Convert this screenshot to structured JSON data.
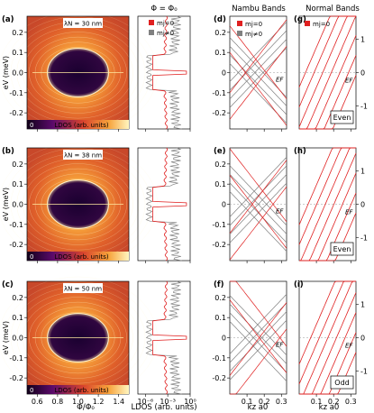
{
  "headers": {
    "col2": "Φ = Φ₀",
    "col3": "Nambu Bands",
    "col4": "Normal Bands"
  },
  "rows": [
    {
      "lambda": "λN = 30 nm",
      "parity": "Even",
      "labels": {
        "map": "(a)",
        "nambu": "(d)",
        "normal": "(g)"
      }
    },
    {
      "lambda": "λN = 38 nm",
      "parity": "Even",
      "labels": {
        "map": "(b)",
        "nambu": "(e)",
        "normal": "(h)"
      }
    },
    {
      "lambda": "λN = 50 nm",
      "parity": "Odd",
      "labels": {
        "map": "(c)",
        "nambu": "(f)",
        "normal": "(i)"
      }
    }
  ],
  "colorbar": {
    "min": "0",
    "label": "LDOS (arb. units)"
  },
  "legend": {
    "mj0": "mj=0",
    "mjn0": "mj≠0",
    "normal_mj0": "mj=0",
    "colors": {
      "mj0": "#e02020",
      "mjn0": "#808080"
    }
  },
  "axes": {
    "ylabel": "eV (meV)",
    "yticks_map": [
      "0.2",
      "0.1",
      "0.0",
      "-0.1",
      "-0.2"
    ],
    "xlabel_map": "Φ/Φ₀",
    "xticks_map": [
      "0.6",
      "0.8",
      "1.0",
      "1.2",
      "1.4"
    ],
    "xlabel_ldos": "LDOS (arb. units)",
    "xticks_ldos": [
      "10⁻⁶",
      "10⁻³",
      "10⁰"
    ],
    "nambu_yticks": [
      "0.2",
      "0.1",
      "0",
      "-0.1",
      "-0.2"
    ],
    "normal_yticks": [
      "1",
      "0",
      "-1"
    ],
    "xticks_k": [
      "0.1",
      "0.2",
      "0.3"
    ],
    "xlabel_k": "kz a0",
    "ef": "EF"
  },
  "chart_data": {
    "type": "figure-panels",
    "map_x_range": [
      0.5,
      1.5
    ],
    "map_y_range": [
      -0.28,
      0.28
    ],
    "nambu_y_range": [
      -0.28,
      0.28
    ],
    "normal_y_range": [
      -1.7,
      1.7
    ],
    "k_range": [
      0.0,
      0.33
    ],
    "ldos_x_range_log10": [
      -7,
      0
    ]
  }
}
